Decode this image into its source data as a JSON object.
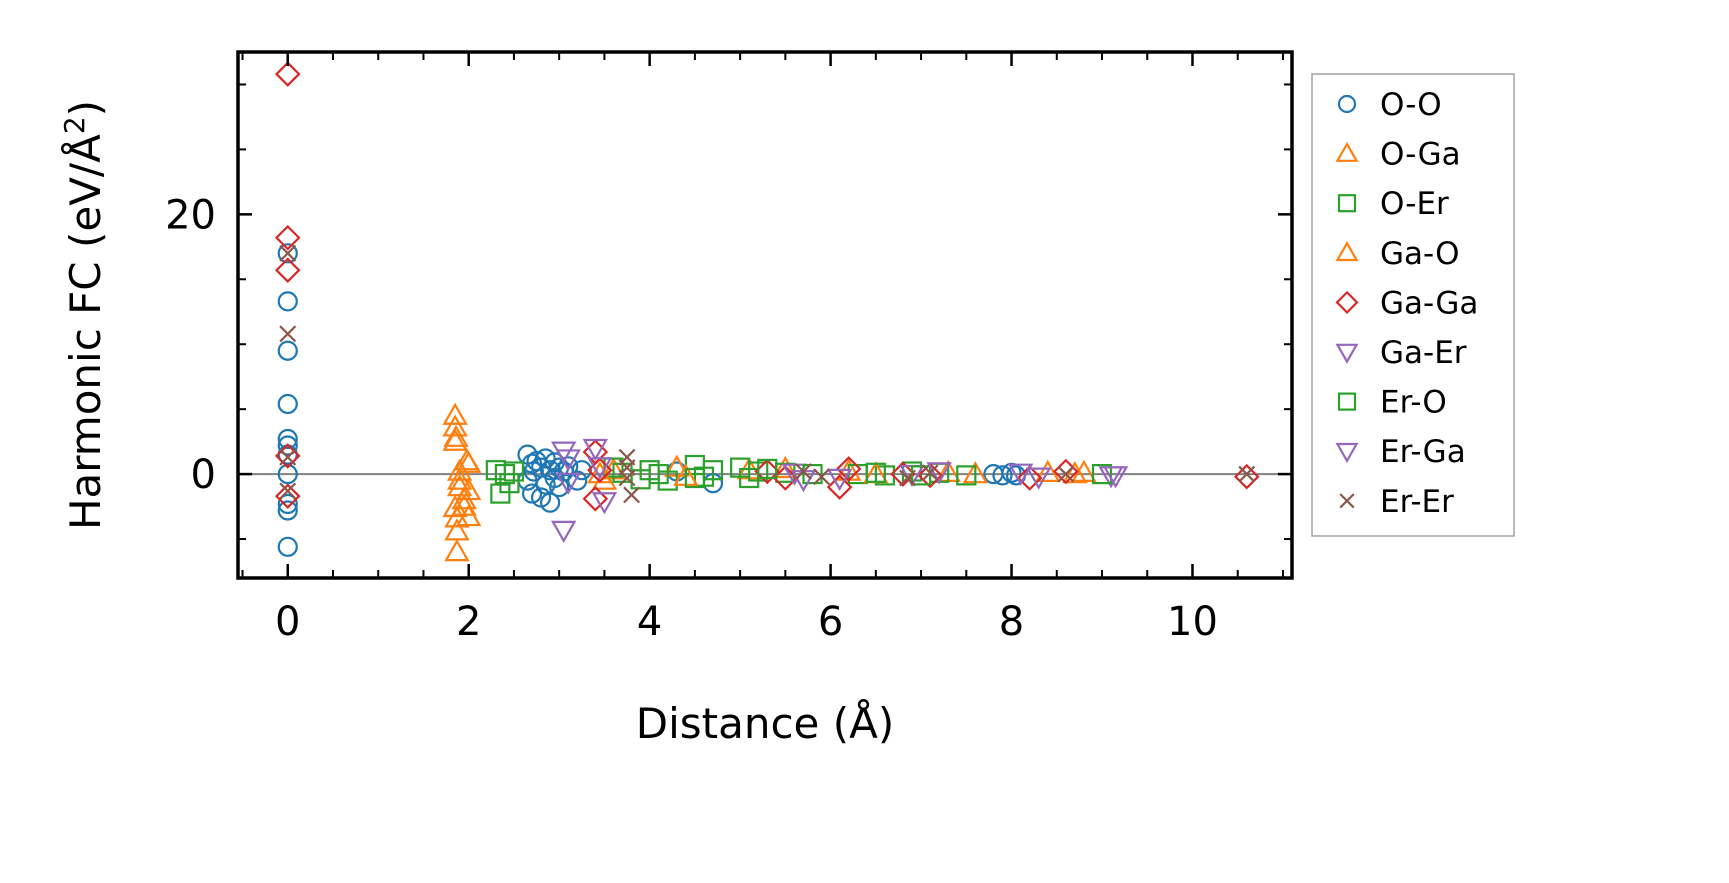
{
  "chart_data": {
    "type": "scatter",
    "xlabel": "Distance (Å)",
    "ylabel": "Harmonic FC (eV/Å²)",
    "xlim": [
      -0.55,
      11.1
    ],
    "ylim": [
      -8.0,
      32.5
    ],
    "xticks": [
      0,
      2,
      4,
      6,
      8,
      10
    ],
    "xtick_labels": [
      "0",
      "2",
      "4",
      "6",
      "8",
      "10"
    ],
    "yticks": [
      0,
      20
    ],
    "ytick_labels": [
      "0",
      "20"
    ],
    "ytick_minor": [
      -5,
      5,
      10,
      15,
      25,
      30
    ],
    "xtick_minor": [
      -0.5,
      0.5,
      1,
      1.5,
      2.5,
      3,
      3.5,
      4.5,
      5,
      5.5,
      6.5,
      7,
      7.5,
      8.5,
      9,
      9.5,
      10.5,
      11
    ],
    "zero_line": 0,
    "grid": false,
    "legend_position": "outside-right",
    "series": [
      {
        "name": "O-O",
        "marker": "circle",
        "color": "#1f77b4",
        "x": [
          0,
          0,
          0,
          0,
          0,
          0,
          0,
          0,
          0,
          0,
          0,
          2.65,
          2.65,
          2.7,
          2.7,
          2.72,
          2.75,
          2.8,
          2.8,
          2.85,
          2.85,
          2.9,
          2.9,
          2.95,
          2.95,
          3.0,
          3.0,
          3.05,
          3.1,
          3.2,
          3.25,
          4.3,
          4.7,
          7.8,
          7.9,
          8.0,
          8.05
        ],
        "y": [
          17.0,
          13.3,
          9.5,
          5.4,
          2.7,
          2.2,
          -2.3,
          -2.8,
          -5.6,
          0,
          1.5,
          1.5,
          -0.5,
          0.8,
          -1.5,
          0.2,
          1.0,
          -1.8,
          0.5,
          -0.8,
          1.2,
          0.3,
          -2.2,
          0.9,
          -0.3,
          0.5,
          -1.0,
          0.2,
          0.6,
          -0.5,
          0.3,
          0.2,
          -0.7,
          0.0,
          -0.1,
          0.1,
          -0.1
        ]
      },
      {
        "name": "O-Ga",
        "marker": "triangle-up",
        "color": "#ff7f0e",
        "x": [
          1.85,
          1.85,
          1.85,
          1.85,
          1.87,
          1.87,
          1.87,
          1.9,
          1.9,
          1.95,
          2.0,
          2.0,
          3.5,
          3.6,
          4.3,
          5.1,
          5.5,
          6.2,
          7.3,
          7.6,
          8.4,
          8.7
        ],
        "y": [
          4.5,
          3.6,
          2.5,
          -2.6,
          -3.4,
          -4.4,
          -6.0,
          0.2,
          -1.0,
          -2.0,
          -1.3,
          0.8,
          -0.5,
          0.3,
          0.5,
          0.3,
          0.4,
          0.2,
          0.1,
          0.0,
          0.1,
          0.0
        ]
      },
      {
        "name": "O-Er",
        "marker": "square",
        "color": "#2ca02c",
        "x": [
          2.3,
          2.35,
          2.4,
          2.45,
          3.6,
          3.9,
          4.0,
          4.1,
          4.2,
          4.5,
          4.6,
          4.7,
          5.0,
          5.1,
          5.2,
          5.5,
          6.3,
          6.6,
          6.9,
          7.2,
          7.5
        ],
        "y": [
          0.3,
          -1.5,
          0.0,
          -0.7,
          0.5,
          -0.4,
          0.3,
          0.0,
          -0.5,
          0.7,
          -0.2,
          0.3,
          0.5,
          -0.3,
          0.2,
          0.1,
          0.0,
          -0.1,
          0.2,
          0.1,
          -0.1
        ]
      },
      {
        "name": "Ga-O",
        "marker": "triangle-up",
        "color": "#ff7f0e",
        "x": [
          1.86,
          1.9,
          1.95,
          1.98,
          2.0,
          3.45,
          4.4,
          6.5,
          8.8
        ],
        "y": [
          2.8,
          -0.5,
          -2.5,
          1.0,
          -3.3,
          0.0,
          -0.2,
          0.0,
          0.1
        ]
      },
      {
        "name": "Ga-Ga",
        "marker": "diamond",
        "color": "#d62728",
        "x": [
          0,
          0,
          0,
          0,
          0,
          3.4,
          3.4,
          3.45,
          5.3,
          5.5,
          6.1,
          6.2,
          6.8,
          7.1,
          8.2,
          8.6,
          10.6
        ],
        "y": [
          30.8,
          18.2,
          15.7,
          1.4,
          -1.7,
          1.7,
          -1.9,
          0.3,
          0.2,
          -0.3,
          -1.0,
          0.4,
          0.0,
          -0.1,
          -0.3,
          0.2,
          -0.2
        ]
      },
      {
        "name": "Ga-Er",
        "marker": "triangle-down",
        "color": "#9467bd",
        "x": [
          3.05,
          3.1,
          3.05,
          3.4,
          3.5,
          5.6,
          6.1,
          6.9,
          8.3,
          9.1
        ],
        "y": [
          1.8,
          1.2,
          -4.3,
          2.0,
          -2.1,
          0.1,
          -0.3,
          0.0,
          -0.2,
          -0.1
        ]
      },
      {
        "name": "Er-O",
        "marker": "square",
        "color": "#2ca02c",
        "x": [
          2.5,
          3.7,
          4.5,
          5.3,
          5.8,
          6.5,
          7.0,
          9.0
        ],
        "y": [
          0.2,
          0.1,
          -0.3,
          0.4,
          0.0,
          0.1,
          -0.1,
          0.0
        ]
      },
      {
        "name": "Er-Ga",
        "marker": "triangle-down",
        "color": "#9467bd",
        "x": [
          3.1,
          3.45,
          5.7,
          7.2,
          8.1,
          9.15
        ],
        "y": [
          -0.6,
          0.6,
          -0.4,
          0.2,
          0.1,
          -0.1
        ]
      },
      {
        "name": "Er-Er",
        "marker": "x",
        "color": "#8c564b",
        "x": [
          0,
          0,
          0,
          0,
          3.75,
          3.75,
          3.75,
          3.8,
          5.7,
          5.9,
          6.85,
          7.1,
          8.6,
          10.6
        ],
        "y": [
          17.0,
          10.8,
          1.3,
          -1.3,
          1.3,
          0.5,
          -0.3,
          -1.6,
          0.2,
          -0.2,
          -0.3,
          0.1,
          0.0,
          0.0
        ]
      }
    ]
  }
}
